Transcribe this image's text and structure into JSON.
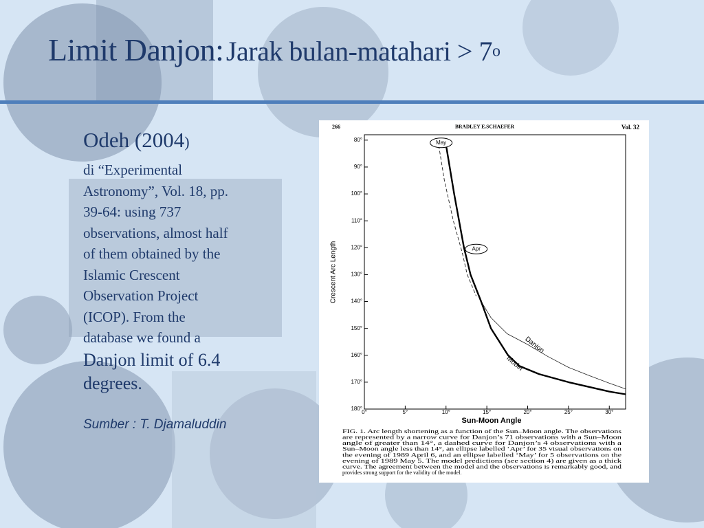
{
  "slide": {
    "title_main": "Limit Danjon:",
    "title_sub": "Jarak bulan-matahari > 7",
    "title_sup": "o",
    "heading": "Odeh (2004",
    "heading_paren": ")",
    "body_lines": [
      " di “Experimental",
      "Astronomy”, Vol. 18, pp.",
      "39-64: using 737",
      "observations, almost half",
      "of them obtained by the",
      "Islamic Crescent",
      "Observation Project",
      "(ICOP). From the",
      "database we found a"
    ],
    "body_large_lines": [
      "Danjon limit of 6.4",
      "degrees."
    ],
    "source": "Sumber : T. Djamaluddin"
  },
  "figure": {
    "page_number": "266",
    "author": "BRADLEY E.SCHAEFER",
    "volume": "Vol. 32",
    "caption_lines": [
      "FIG. 1.  Arc length shortening as a function of the Sun–Moon angle. The observations",
      "are represented by a narrow curve for Danjon’s 71 observations with a Sun–Moon",
      "angle of greater than 14°, a dashed curve for Danjon’s 4 observations with a",
      "Sun–Moon angle less than 14°, an ellipse labelled ‘Apr’ for 35 visual observations on",
      "the evening of 1989 April 6, and an ellipse labelled ‘May’ for 5 observations on the",
      "evening of 1989 May 5. The model predictions (see section 4) are given as a thick",
      "curve. The agreement between the model and the observations is remarkably good, and",
      "provides strong support for the validity of the model."
    ]
  },
  "chart_data": {
    "type": "line",
    "x_label": "Sun-Moon Angle",
    "y_label": "Crescent Arc Length",
    "xlim": [
      0,
      32
    ],
    "ylim": [
      180,
      78
    ],
    "xticks": [
      {
        "value": 0,
        "label": "0°"
      },
      {
        "value": 5,
        "label": "5°"
      },
      {
        "value": 10,
        "label": "10°"
      },
      {
        "value": 15,
        "label": "15°"
      },
      {
        "value": 20,
        "label": "20°"
      },
      {
        "value": 25,
        "label": "25°"
      },
      {
        "value": 30,
        "label": "30°"
      }
    ],
    "yticks": [
      {
        "value": 80,
        "label": "80°"
      },
      {
        "value": 90,
        "label": "90°"
      },
      {
        "value": 100,
        "label": "100°"
      },
      {
        "value": 110,
        "label": "110°"
      },
      {
        "value": 120,
        "label": "120°"
      },
      {
        "value": 130,
        "label": "130°"
      },
      {
        "value": 140,
        "label": "140°"
      },
      {
        "value": 150,
        "label": "150°"
      },
      {
        "value": 160,
        "label": "160°"
      },
      {
        "value": 170,
        "label": "170°"
      },
      {
        "value": 180,
        "label": "180°"
      }
    ],
    "series": [
      {
        "name": "Danjon",
        "color": "#222222",
        "width": 0.8,
        "dashed": false,
        "x": [
          14.3,
          15.5,
          17.5,
          20,
          22.5,
          25,
          27.5,
          30,
          32
        ],
        "values": [
          140,
          146,
          152,
          156,
          160.5,
          164.5,
          167.5,
          170.4,
          172.5
        ]
      },
      {
        "name": "Model",
        "color": "#000000",
        "width": 2.4,
        "dashed": false,
        "x": [
          9.9,
          11,
          12.2,
          13,
          14.3,
          15.5,
          17.6,
          19,
          21.4,
          25,
          30,
          32
        ],
        "values": [
          80,
          100,
          120,
          130,
          140,
          150,
          160,
          164,
          167,
          170,
          173.5,
          174.5
        ]
      },
      {
        "color": "#222222",
        "width": 0.9,
        "dashed": true,
        "x": [
          9.0,
          9.8,
          10.9,
          12.0,
          12.6,
          13.7
        ],
        "values": [
          80,
          95,
          110,
          122,
          130,
          138
        ]
      }
    ],
    "annotations": [
      {
        "text": "May",
        "x": 9.4,
        "y": 81
      },
      {
        "text": "Apr",
        "x": 13.7,
        "y": 120.5
      }
    ]
  }
}
